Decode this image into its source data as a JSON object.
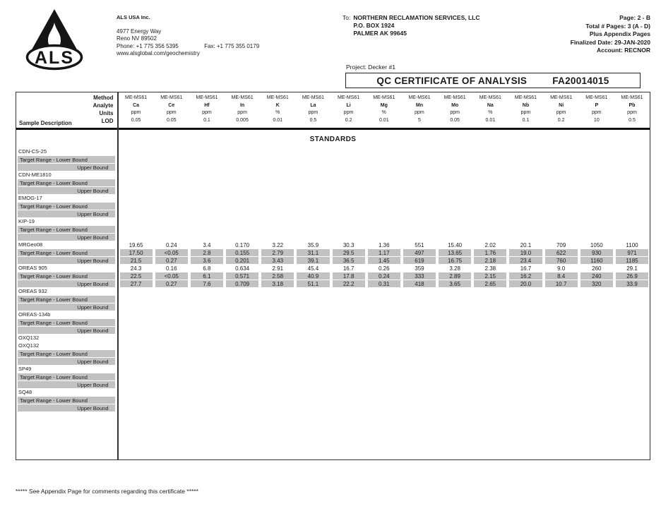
{
  "company": {
    "name": "ALS USA Inc.",
    "logo_text": "ALS",
    "address1": "4977 Energy Way",
    "address2": "Reno NV 89502",
    "phone": "Phone: +1 775 356 5395",
    "fax": "Fax: +1 775 355 0179",
    "website": "www.alsglobal.com/geochemistry"
  },
  "recipient": {
    "label": "To:",
    "name": "NORTHERN RECLAMATION SERVICES, LLC",
    "line1": "P.O. BOX 1924",
    "line2": "PALMER AK 99645"
  },
  "page_info": {
    "lines": [
      "Page: 2 - B",
      "Total # Pages: 3  (A - D)",
      "Plus Appendix Pages",
      "Finalized Date: 29-JAN-2020",
      "Account: RECNOR"
    ]
  },
  "project": "Project: Decker #1",
  "certificate": {
    "title": "QC CERTIFICATE OF ANALYSIS",
    "number": "FA20014015"
  },
  "table": {
    "corner": {
      "col_title": "Sample Description",
      "meta_labels": [
        "Method",
        "Analyte",
        "Units",
        "LOD"
      ]
    },
    "section_title": "STANDARDS",
    "row_labels": {
      "lower": "Target Range - Lower Bound",
      "upper": "Upper Bound"
    },
    "columns": [
      {
        "method": "ME-MS61",
        "analyte": "Ca",
        "units": "ppm",
        "lod": "0.05"
      },
      {
        "method": "ME-MS61",
        "analyte": "Ce",
        "units": "ppm",
        "lod": "0.05"
      },
      {
        "method": "ME-MS61",
        "analyte": "Hf",
        "units": "ppm",
        "lod": "0.1"
      },
      {
        "method": "ME-MS61",
        "analyte": "In",
        "units": "ppm",
        "lod": "0.005"
      },
      {
        "method": "ME-MS61",
        "analyte": "K",
        "units": "%",
        "lod": "0.01"
      },
      {
        "method": "ME-MS61",
        "analyte": "La",
        "units": "ppm",
        "lod": "0.5"
      },
      {
        "method": "ME-MS61",
        "analyte": "Li",
        "units": "ppm",
        "lod": "0.2"
      },
      {
        "method": "ME-MS61",
        "analyte": "Mg",
        "units": "%",
        "lod": "0.01"
      },
      {
        "method": "ME-MS61",
        "analyte": "Mn",
        "units": "ppm",
        "lod": "5"
      },
      {
        "method": "ME-MS61",
        "analyte": "Mo",
        "units": "ppm",
        "lod": "0.05"
      },
      {
        "method": "ME-MS61",
        "analyte": "Na",
        "units": "%",
        "lod": "0.01"
      },
      {
        "method": "ME-MS61",
        "analyte": "Nb",
        "units": "ppm",
        "lod": "0.1"
      },
      {
        "method": "ME-MS61",
        "analyte": "Ni",
        "units": "ppm",
        "lod": "0.2"
      },
      {
        "method": "ME-MS61",
        "analyte": "P",
        "units": "ppm",
        "lod": "10"
      },
      {
        "method": "ME-MS61",
        "analyte": "Pb",
        "units": "ppm",
        "lod": "0.5"
      }
    ],
    "groups": [
      {
        "name": "CDN-CS-25"
      },
      {
        "name": "CDN-ME1810"
      },
      {
        "name": "EMOG-17"
      },
      {
        "name": "KIP-19"
      },
      {
        "name": "MRGeo08",
        "values": [
          "19.65",
          "0.24",
          "3.4",
          "0.170",
          "3.22",
          "35.9",
          "30.3",
          "1.36",
          "551",
          "15.40",
          "2.02",
          "20.1",
          "709",
          "1050",
          "1100"
        ],
        "lower": [
          "17.50",
          "<0.05",
          "2.8",
          "0.155",
          "2.79",
          "31.1",
          "29.5",
          "1.17",
          "497",
          "13.65",
          "1.76",
          "19.0",
          "622",
          "930",
          "971"
        ],
        "upper": [
          "21.5",
          "0.27",
          "3.6",
          "0.201",
          "3.43",
          "39.1",
          "36.5",
          "1.45",
          "619",
          "16.75",
          "2.18",
          "23.4",
          "760",
          "1160",
          "1185"
        ]
      },
      {
        "name": "OREAS 905",
        "values": [
          "24.3",
          "0.16",
          "6.8",
          "0.634",
          "2.91",
          "45.4",
          "16.7",
          "0.26",
          "359",
          "3.28",
          "2.38",
          "16.7",
          "9.0",
          "260",
          "29.1"
        ],
        "lower": [
          "22.5",
          "<0.05",
          "6.1",
          "0.571",
          "2.58",
          "40.9",
          "17.8",
          "0.24",
          "333",
          "2.89",
          "2.15",
          "16.2",
          "8.4",
          "240",
          "26.9"
        ],
        "upper": [
          "27.7",
          "0.27",
          "7.6",
          "0.709",
          "3.18",
          "51.1",
          "22.2",
          "0.31",
          "418",
          "3.65",
          "2.65",
          "20.0",
          "10.7",
          "320",
          "33.9"
        ]
      },
      {
        "name": "OREAS 932"
      },
      {
        "name": "OREAS-134b"
      },
      {
        "name": "OXQ132",
        "name2": "OXQ132"
      },
      {
        "name": "SP49"
      },
      {
        "name": "SQ48"
      }
    ]
  },
  "footer": "***** See Appendix Page for comments regarding this certificate *****"
}
